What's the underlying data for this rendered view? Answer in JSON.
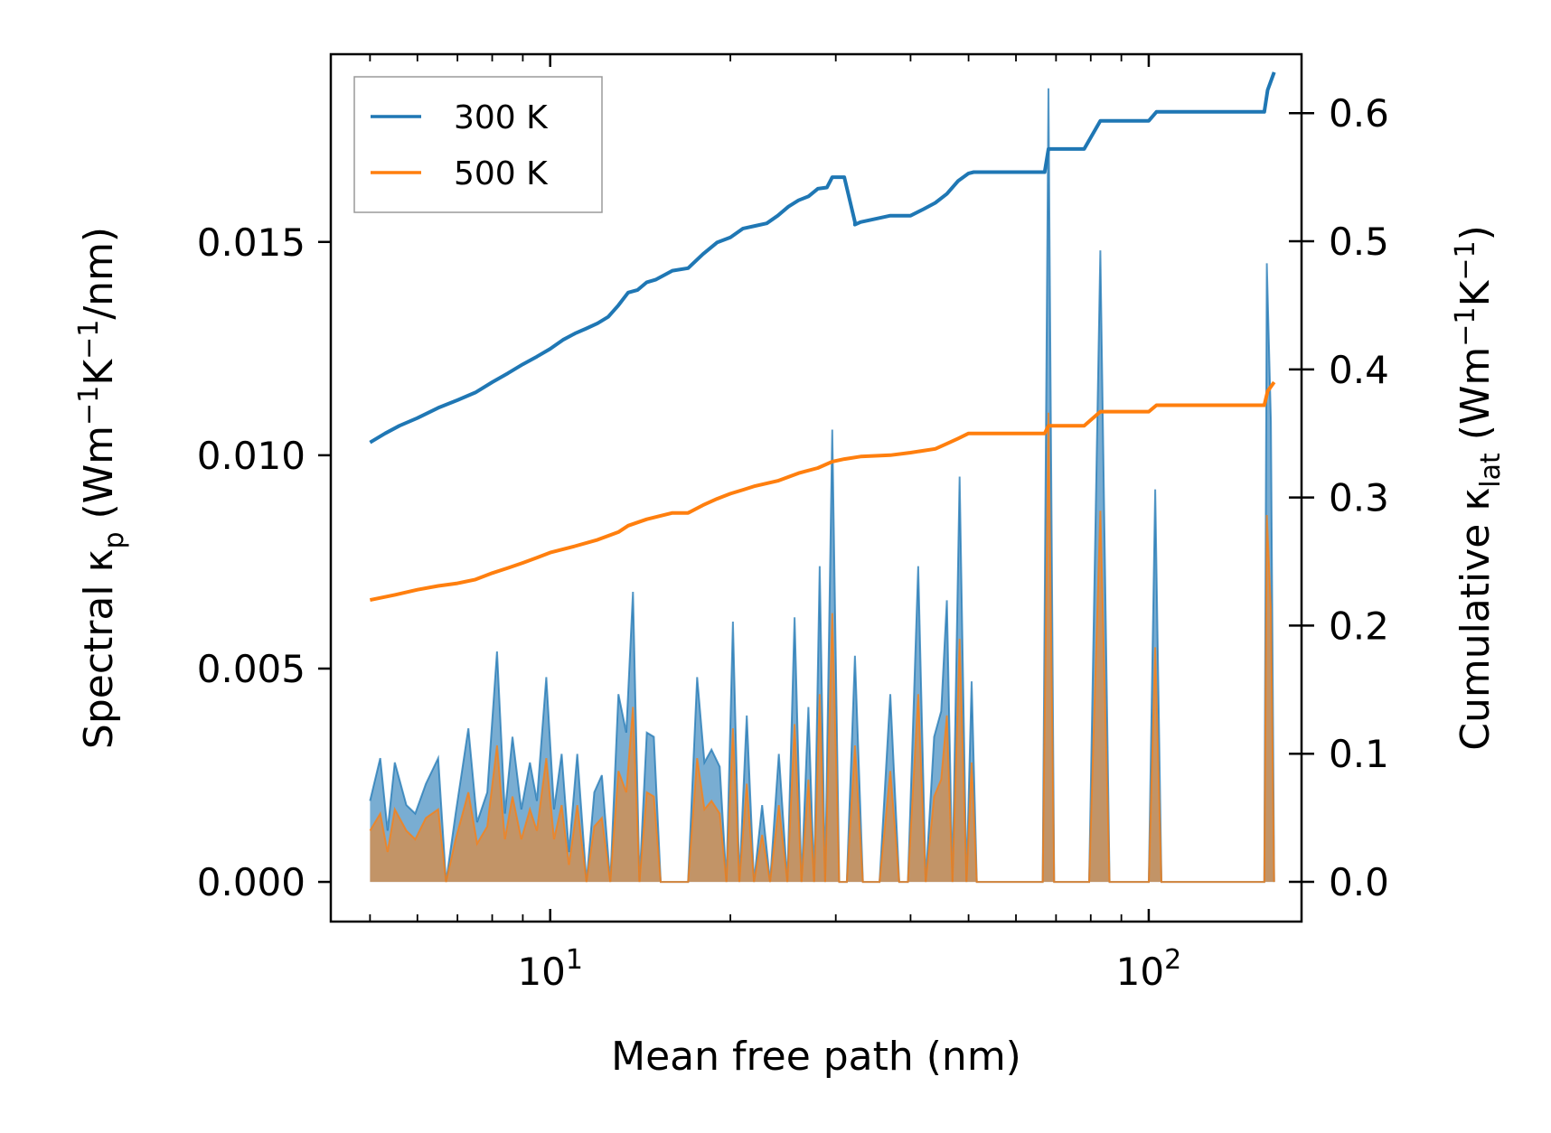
{
  "chart_data": {
    "type": "line",
    "xscale": "log",
    "xlabel": "Mean free path (nm)",
    "ylabel_left": {
      "main": "Spectral κ",
      "sub": "p",
      "unit_pre": " (Wm",
      "sup1": "−1",
      "unit_mid": "K",
      "sup2": "−1",
      "unit_post": "/nm)"
    },
    "ylabel_right": {
      "main": "Cumulative κ",
      "sub": "lat",
      "unit_pre": " (Wm",
      "sup1": "−1",
      "unit_mid": "K",
      "sup2": "−1",
      "unit_post": ")"
    },
    "xlim": [
      4.3,
      180
    ],
    "ylim_left": [
      -0.00093,
      0.0194
    ],
    "ylim_right": [
      -0.031,
      0.646
    ],
    "x_ticks": [
      {
        "value": 10,
        "base": "10",
        "exp": "1"
      },
      {
        "value": 100,
        "base": "10",
        "exp": "2"
      }
    ],
    "y_left_ticks": [
      {
        "value": 0,
        "label": "0.000"
      },
      {
        "value": 0.005,
        "label": "0.005"
      },
      {
        "value": 0.01,
        "label": "0.010"
      },
      {
        "value": 0.015,
        "label": "0.015"
      }
    ],
    "y_right_ticks": [
      {
        "value": 0,
        "label": "0.0"
      },
      {
        "value": 0.1,
        "label": "0.1"
      },
      {
        "value": 0.2,
        "label": "0.2"
      },
      {
        "value": 0.3,
        "label": "0.3"
      },
      {
        "value": 0.4,
        "label": "0.4"
      },
      {
        "value": 0.5,
        "label": "0.5"
      },
      {
        "value": 0.6,
        "label": "0.6"
      }
    ],
    "legend": {
      "position": "top-left",
      "entries": [
        {
          "label": "300 K",
          "color": "#1f77b4"
        },
        {
          "label": "500 K",
          "color": "#ff7f0e"
        }
      ]
    },
    "spectral": {
      "300 K": [
        [
          5.0,
          0.0019
        ],
        [
          5.2,
          0.0029
        ],
        [
          5.35,
          0.0012
        ],
        [
          5.5,
          0.0028
        ],
        [
          5.75,
          0.0018
        ],
        [
          5.95,
          0.0016
        ],
        [
          6.2,
          0.0023
        ],
        [
          6.5,
          0.0029
        ],
        [
          6.7,
          0.0
        ],
        [
          6.95,
          0.0016
        ],
        [
          7.3,
          0.0036
        ],
        [
          7.55,
          0.0014
        ],
        [
          7.85,
          0.0021
        ],
        [
          8.15,
          0.0054
        ],
        [
          8.4,
          0.0016
        ],
        [
          8.65,
          0.0034
        ],
        [
          8.95,
          0.0017
        ],
        [
          9.25,
          0.0028
        ],
        [
          9.5,
          0.0019
        ],
        [
          9.85,
          0.0048
        ],
        [
          10.15,
          0.0017
        ],
        [
          10.45,
          0.003
        ],
        [
          10.75,
          0.0007
        ],
        [
          11.1,
          0.003
        ],
        [
          11.5,
          0.0
        ],
        [
          11.85,
          0.0021
        ],
        [
          12.2,
          0.0025
        ],
        [
          12.6,
          0.0
        ],
        [
          13.0,
          0.0044
        ],
        [
          13.4,
          0.0035
        ],
        [
          13.75,
          0.0068
        ],
        [
          14.1,
          0.0
        ],
        [
          14.5,
          0.0035
        ],
        [
          14.9,
          0.0034
        ],
        [
          15.3,
          0.0
        ],
        [
          16.2,
          0.0
        ],
        [
          17.0,
          0.0
        ],
        [
          17.6,
          0.0048
        ],
        [
          18.1,
          0.0028
        ],
        [
          18.6,
          0.0031
        ],
        [
          19.2,
          0.0027
        ],
        [
          19.7,
          0.0
        ],
        [
          20.2,
          0.0061
        ],
        [
          20.7,
          0.0
        ],
        [
          21.3,
          0.0039
        ],
        [
          21.9,
          0.0
        ],
        [
          22.6,
          0.0018
        ],
        [
          23.3,
          0.0
        ],
        [
          24.1,
          0.003
        ],
        [
          24.9,
          0.0
        ],
        [
          25.6,
          0.0062
        ],
        [
          26.3,
          0.0
        ],
        [
          27.0,
          0.0041
        ],
        [
          27.6,
          0.0
        ],
        [
          28.2,
          0.0074
        ],
        [
          28.8,
          0.0
        ],
        [
          29.6,
          0.0106
        ],
        [
          30.4,
          0.0
        ],
        [
          31.3,
          0.0
        ],
        [
          32.3,
          0.0053
        ],
        [
          33.3,
          0.0
        ],
        [
          35.5,
          0.0
        ],
        [
          37.0,
          0.0044
        ],
        [
          38.3,
          0.0
        ],
        [
          39.6,
          0.0
        ],
        [
          41.2,
          0.0074
        ],
        [
          42.4,
          0.0
        ],
        [
          43.8,
          0.0034
        ],
        [
          45.0,
          0.004
        ],
        [
          46.0,
          0.0066
        ],
        [
          47.0,
          0.0
        ],
        [
          48.3,
          0.0095
        ],
        [
          49.6,
          0.0
        ],
        [
          50.6,
          0.0047
        ],
        [
          51.6,
          0.0
        ],
        [
          60.0,
          0.0
        ],
        [
          66.5,
          0.0
        ],
        [
          68.0,
          0.0186
        ],
        [
          69.5,
          0.0
        ],
        [
          79.5,
          0.0
        ],
        [
          83.0,
          0.0148
        ],
        [
          86.0,
          0.0
        ],
        [
          100.0,
          0.0
        ],
        [
          102.5,
          0.0092
        ],
        [
          105.0,
          0.0
        ],
        [
          150.0,
          0.0
        ],
        [
          156.0,
          0.0
        ],
        [
          157.5,
          0.0145
        ],
        [
          160.0,
          0.0108
        ],
        [
          162.0,
          0.0
        ]
      ],
      "500 K": [
        [
          5.0,
          0.0012
        ],
        [
          5.2,
          0.0016
        ],
        [
          5.35,
          0.0007
        ],
        [
          5.5,
          0.0017
        ],
        [
          5.75,
          0.0012
        ],
        [
          5.95,
          0.001
        ],
        [
          6.2,
          0.0015
        ],
        [
          6.5,
          0.0017
        ],
        [
          6.7,
          0.0
        ],
        [
          6.95,
          0.001
        ],
        [
          7.3,
          0.0021
        ],
        [
          7.55,
          0.0009
        ],
        [
          7.85,
          0.0013
        ],
        [
          8.15,
          0.0032
        ],
        [
          8.4,
          0.001
        ],
        [
          8.65,
          0.002
        ],
        [
          8.95,
          0.001
        ],
        [
          9.25,
          0.0017
        ],
        [
          9.5,
          0.0012
        ],
        [
          9.85,
          0.0029
        ],
        [
          10.15,
          0.001
        ],
        [
          10.45,
          0.0018
        ],
        [
          10.75,
          0.0004
        ],
        [
          11.1,
          0.0018
        ],
        [
          11.5,
          0.0
        ],
        [
          11.85,
          0.0013
        ],
        [
          12.2,
          0.0015
        ],
        [
          12.6,
          0.0
        ],
        [
          13.0,
          0.0026
        ],
        [
          13.4,
          0.0021
        ],
        [
          13.75,
          0.0041
        ],
        [
          14.1,
          0.0
        ],
        [
          14.5,
          0.0021
        ],
        [
          14.9,
          0.002
        ],
        [
          15.3,
          0.0
        ],
        [
          16.2,
          0.0
        ],
        [
          17.0,
          0.0
        ],
        [
          17.6,
          0.0029
        ],
        [
          18.1,
          0.0017
        ],
        [
          18.6,
          0.0019
        ],
        [
          19.2,
          0.0016
        ],
        [
          19.7,
          0.0
        ],
        [
          20.2,
          0.0036
        ],
        [
          20.7,
          0.0
        ],
        [
          21.3,
          0.0023
        ],
        [
          21.9,
          0.0
        ],
        [
          22.6,
          0.0011
        ],
        [
          23.3,
          0.0
        ],
        [
          24.1,
          0.0018
        ],
        [
          24.9,
          0.0
        ],
        [
          25.6,
          0.0037
        ],
        [
          26.3,
          0.0
        ],
        [
          27.0,
          0.0024
        ],
        [
          27.6,
          0.0
        ],
        [
          28.2,
          0.0044
        ],
        [
          28.8,
          0.0
        ],
        [
          29.6,
          0.0063
        ],
        [
          30.4,
          0.0
        ],
        [
          31.3,
          0.0
        ],
        [
          32.3,
          0.0032
        ],
        [
          33.3,
          0.0
        ],
        [
          35.5,
          0.0
        ],
        [
          37.0,
          0.0026
        ],
        [
          38.3,
          0.0
        ],
        [
          39.6,
          0.0
        ],
        [
          41.2,
          0.0044
        ],
        [
          42.4,
          0.0
        ],
        [
          43.8,
          0.002
        ],
        [
          45.0,
          0.0024
        ],
        [
          46.0,
          0.0039
        ],
        [
          47.0,
          0.0
        ],
        [
          48.3,
          0.0057
        ],
        [
          49.6,
          0.0
        ],
        [
          50.6,
          0.0028
        ],
        [
          51.6,
          0.0
        ],
        [
          60.0,
          0.0
        ],
        [
          66.5,
          0.0
        ],
        [
          68.0,
          0.011
        ],
        [
          69.5,
          0.0
        ],
        [
          79.5,
          0.0
        ],
        [
          83.0,
          0.0087
        ],
        [
          86.0,
          0.0
        ],
        [
          100.0,
          0.0
        ],
        [
          102.5,
          0.0055
        ],
        [
          105.0,
          0.0
        ],
        [
          150.0,
          0.0
        ],
        [
          156.0,
          0.0
        ],
        [
          157.5,
          0.0086
        ],
        [
          160.0,
          0.0064
        ],
        [
          162.0,
          0.0
        ]
      ]
    },
    "cumulative": {
      "300 K": [
        [
          5.0,
          0.343
        ],
        [
          5.3,
          0.35
        ],
        [
          5.6,
          0.356
        ],
        [
          6.0,
          0.362
        ],
        [
          6.5,
          0.37
        ],
        [
          7.0,
          0.376
        ],
        [
          7.5,
          0.382
        ],
        [
          8.0,
          0.39
        ],
        [
          8.5,
          0.397
        ],
        [
          9.0,
          0.404
        ],
        [
          9.5,
          0.41
        ],
        [
          10.0,
          0.416
        ],
        [
          10.5,
          0.423
        ],
        [
          11.0,
          0.428
        ],
        [
          11.5,
          0.432
        ],
        [
          12.0,
          0.436
        ],
        [
          12.5,
          0.441
        ],
        [
          13.0,
          0.45
        ],
        [
          13.5,
          0.46
        ],
        [
          14.0,
          0.462
        ],
        [
          14.5,
          0.468
        ],
        [
          15.0,
          0.47
        ],
        [
          16.0,
          0.477
        ],
        [
          17.0,
          0.479
        ],
        [
          18.0,
          0.49
        ],
        [
          19.0,
          0.499
        ],
        [
          20.0,
          0.503
        ],
        [
          21.0,
          0.51
        ],
        [
          22.0,
          0.512
        ],
        [
          23.0,
          0.514
        ],
        [
          24.0,
          0.52
        ],
        [
          25.0,
          0.527
        ],
        [
          26.0,
          0.532
        ],
        [
          27.0,
          0.535
        ],
        [
          28.0,
          0.541
        ],
        [
          29.0,
          0.542
        ],
        [
          29.6,
          0.55
        ],
        [
          31.0,
          0.55
        ],
        [
          32.3,
          0.515
        ],
        [
          32.3,
          0.513
        ],
        [
          33.0,
          0.515
        ],
        [
          37.0,
          0.52
        ],
        [
          40.0,
          0.52
        ],
        [
          42.0,
          0.525
        ],
        [
          44.0,
          0.53
        ],
        [
          46.0,
          0.537
        ],
        [
          48.0,
          0.547
        ],
        [
          50.0,
          0.553
        ],
        [
          51.0,
          0.554
        ],
        [
          60.0,
          0.554
        ],
        [
          67.0,
          0.554
        ],
        [
          68.0,
          0.572
        ],
        [
          78.0,
          0.572
        ],
        [
          83.0,
          0.594
        ],
        [
          100.0,
          0.594
        ],
        [
          103.0,
          0.601
        ],
        [
          150.0,
          0.601
        ],
        [
          156.0,
          0.601
        ],
        [
          158.0,
          0.618
        ],
        [
          162.0,
          0.632
        ]
      ],
      "500 K": [
        [
          5.0,
          0.22
        ],
        [
          5.5,
          0.224
        ],
        [
          6.0,
          0.228
        ],
        [
          6.5,
          0.231
        ],
        [
          7.0,
          0.233
        ],
        [
          7.5,
          0.236
        ],
        [
          8.0,
          0.241
        ],
        [
          8.5,
          0.245
        ],
        [
          9.0,
          0.249
        ],
        [
          9.5,
          0.253
        ],
        [
          10.0,
          0.257
        ],
        [
          11.0,
          0.262
        ],
        [
          12.0,
          0.267
        ],
        [
          13.0,
          0.273
        ],
        [
          13.5,
          0.278
        ],
        [
          14.5,
          0.283
        ],
        [
          16.0,
          0.288
        ],
        [
          17.0,
          0.288
        ],
        [
          18.0,
          0.294
        ],
        [
          19.0,
          0.299
        ],
        [
          20.0,
          0.303
        ],
        [
          21.0,
          0.306
        ],
        [
          22.0,
          0.309
        ],
        [
          24.0,
          0.313
        ],
        [
          26.0,
          0.319
        ],
        [
          28.0,
          0.323
        ],
        [
          29.6,
          0.328
        ],
        [
          31.0,
          0.33
        ],
        [
          33.0,
          0.332
        ],
        [
          37.0,
          0.333
        ],
        [
          40.0,
          0.335
        ],
        [
          44.0,
          0.338
        ],
        [
          46.0,
          0.342
        ],
        [
          48.0,
          0.346
        ],
        [
          50.0,
          0.35
        ],
        [
          52.0,
          0.35
        ],
        [
          67.0,
          0.35
        ],
        [
          68.0,
          0.356
        ],
        [
          78.0,
          0.356
        ],
        [
          83.0,
          0.367
        ],
        [
          100.0,
          0.367
        ],
        [
          103.0,
          0.372
        ],
        [
          150.0,
          0.372
        ],
        [
          156.0,
          0.372
        ],
        [
          158.0,
          0.383
        ],
        [
          162.0,
          0.39
        ]
      ]
    }
  }
}
